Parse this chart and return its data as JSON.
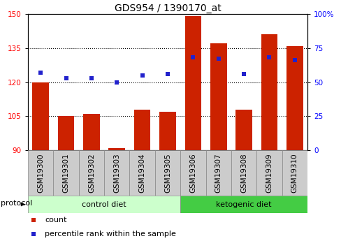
{
  "title": "GDS954 / 1390170_at",
  "samples": [
    "GSM19300",
    "GSM19301",
    "GSM19302",
    "GSM19303",
    "GSM19304",
    "GSM19305",
    "GSM19306",
    "GSM19307",
    "GSM19308",
    "GSM19309",
    "GSM19310"
  ],
  "counts": [
    120,
    105,
    106,
    91,
    108,
    107,
    149,
    137,
    108,
    141,
    136
  ],
  "percentile_ranks": [
    57,
    53,
    53,
    50,
    55,
    56,
    68,
    67,
    56,
    68,
    66
  ],
  "ymin": 90,
  "ymax": 150,
  "yticks_left": [
    90,
    105,
    120,
    135,
    150
  ],
  "yticks_right_vals": [
    0,
    25,
    50,
    75,
    100
  ],
  "yticks_right_labels": [
    "0",
    "25",
    "50",
    "75",
    "100%"
  ],
  "bar_color": "#cc2200",
  "dot_color": "#2222cc",
  "control_samples_count": 6,
  "ketogenic_samples_count": 5,
  "control_label": "control diet",
  "ketogenic_label": "ketogenic diet",
  "protocol_label": "protocol",
  "legend_count": "count",
  "legend_percentile": "percentile rank within the sample",
  "control_bg": "#ccffcc",
  "ketogenic_bg": "#44cc44",
  "bar_bg": "#cccccc",
  "title_fontsize": 10,
  "tick_fontsize": 7.5,
  "label_fontsize": 7.5,
  "legend_fontsize": 8,
  "protocol_fontsize": 8
}
